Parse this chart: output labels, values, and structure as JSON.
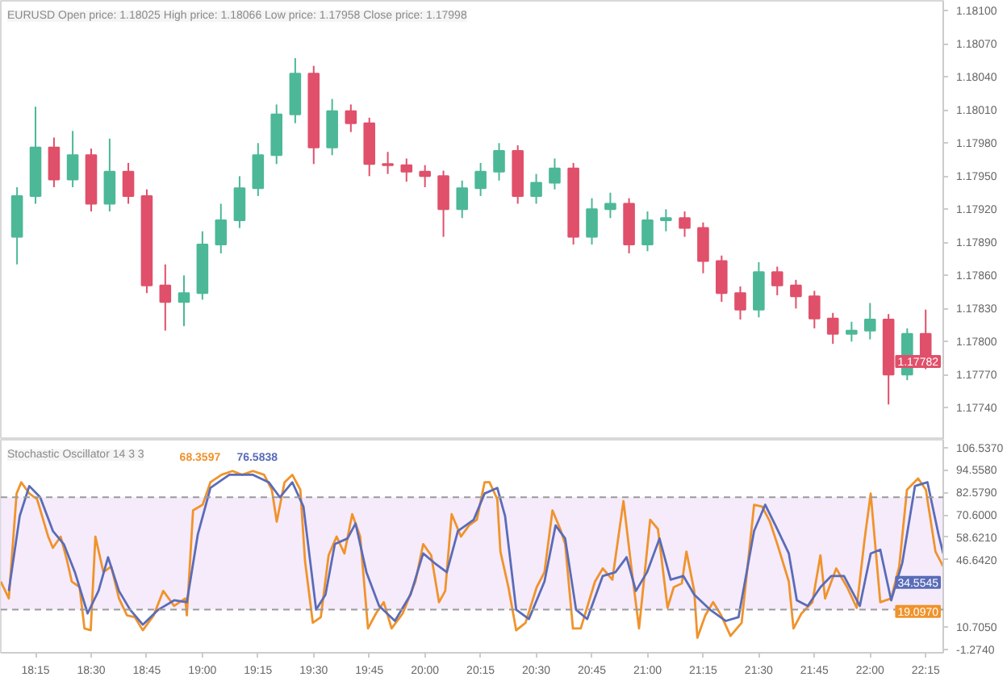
{
  "chart_data": [
    {
      "type": "candlestick",
      "title": "EURUSD Open price: 1.18025 High price: 1.18066 Low price: 1.17958 Close price: 1.17998",
      "x": [
        18.167,
        18.25,
        18.333,
        18.417,
        18.5,
        18.583,
        18.667,
        18.75,
        18.833,
        18.917,
        19,
        19.083,
        19.167,
        19.25,
        19.333,
        19.417,
        19.5,
        19.583,
        19.667,
        19.75,
        19.833,
        19.917,
        20,
        20.083,
        20.167,
        20.25,
        20.333,
        20.417,
        20.5,
        20.583,
        20.667,
        20.75,
        20.833,
        20.917,
        21,
        21.083,
        21.167,
        21.25,
        21.333,
        21.417,
        21.5,
        21.583,
        21.667,
        21.75,
        21.833,
        21.917,
        22,
        22.083,
        22.167,
        22.25
      ],
      "ohlc": [
        [
          1.17895,
          1.1794,
          1.1787,
          1.17932
        ],
        [
          1.17932,
          1.18013,
          1.17925,
          1.17976
        ],
        [
          1.17976,
          1.17985,
          1.1794,
          1.17947
        ],
        [
          1.17947,
          1.17991,
          1.1794,
          1.17969
        ],
        [
          1.17969,
          1.17975,
          1.17918,
          1.17925
        ],
        [
          1.17925,
          1.17984,
          1.17918,
          1.17954
        ],
        [
          1.17954,
          1.17962,
          1.17925,
          1.17932
        ],
        [
          1.17932,
          1.17938,
          1.17844,
          1.17851
        ],
        [
          1.17851,
          1.1787,
          1.1781,
          1.17836
        ],
        [
          1.17836,
          1.1786,
          1.17814,
          1.17844
        ],
        [
          1.17844,
          1.179,
          1.17838,
          1.17888
        ],
        [
          1.17888,
          1.17925,
          1.1788,
          1.1791
        ],
        [
          1.1791,
          1.1795,
          1.17903,
          1.17939
        ],
        [
          1.17939,
          1.1798,
          1.17932,
          1.17969
        ],
        [
          1.17969,
          1.18015,
          1.17961,
          1.18006
        ],
        [
          1.18006,
          1.18057,
          1.17998,
          1.18043
        ],
        [
          1.18043,
          1.1805,
          1.17961,
          1.17976
        ],
        [
          1.17976,
          1.1802,
          1.17969,
          1.18009
        ],
        [
          1.18009,
          1.18015,
          1.1799,
          1.17998
        ],
        [
          1.17998,
          1.18003,
          1.1795,
          1.17961
        ],
        [
          1.17961,
          1.17972,
          1.17952,
          1.1796
        ],
        [
          1.1796,
          1.17966,
          1.17945,
          1.17954
        ],
        [
          1.17954,
          1.1796,
          1.1794,
          1.1795
        ],
        [
          1.1795,
          1.17955,
          1.17895,
          1.1792
        ],
        [
          1.1792,
          1.17946,
          1.17912,
          1.17939
        ],
        [
          1.17939,
          1.17962,
          1.17932,
          1.17954
        ],
        [
          1.17954,
          1.1798,
          1.17946,
          1.17973
        ],
        [
          1.17973,
          1.17978,
          1.17925,
          1.17932
        ],
        [
          1.17932,
          1.17952,
          1.17925,
          1.17944
        ],
        [
          1.17944,
          1.17966,
          1.17938,
          1.17957
        ],
        [
          1.17957,
          1.17962,
          1.17888,
          1.17895
        ],
        [
          1.17895,
          1.1793,
          1.17888,
          1.1792
        ],
        [
          1.1792,
          1.17935,
          1.17912,
          1.17925
        ],
        [
          1.17925,
          1.1793,
          1.1788,
          1.17888
        ],
        [
          1.17888,
          1.17918,
          1.17882,
          1.1791
        ],
        [
          1.1791,
          1.1792,
          1.179,
          1.17912
        ],
        [
          1.17912,
          1.17918,
          1.17895,
          1.17903
        ],
        [
          1.17903,
          1.17908,
          1.17862,
          1.17873
        ],
        [
          1.17873,
          1.17878,
          1.17836,
          1.17844
        ],
        [
          1.17844,
          1.1785,
          1.1782,
          1.17829
        ],
        [
          1.17829,
          1.17872,
          1.17822,
          1.17863
        ],
        [
          1.17863,
          1.17868,
          1.17842,
          1.17851
        ],
        [
          1.17851,
          1.17856,
          1.1783,
          1.17841
        ],
        [
          1.17841,
          1.17846,
          1.17812,
          1.17821
        ],
        [
          1.17821,
          1.17826,
          1.17798,
          1.17807
        ],
        [
          1.17807,
          1.17818,
          1.178,
          1.1781
        ],
        [
          1.1781,
          1.17835,
          1.17802,
          1.1782
        ],
        [
          1.1782,
          1.17825,
          1.17743,
          1.1777
        ],
        [
          1.1777,
          1.17812,
          1.17765,
          1.17807
        ],
        [
          1.17807,
          1.17829,
          1.17775,
          1.17782
        ]
      ],
      "colors": [
        "#4cb897",
        "#4cb897",
        "#e0506a",
        "#4cb897",
        "#e0506a",
        "#4cb897",
        "#e0506a",
        "#e0506a",
        "#e0506a",
        "#4cb897",
        "#4cb897",
        "#4cb897",
        "#4cb897",
        "#4cb897",
        "#4cb897",
        "#4cb897",
        "#e0506a",
        "#4cb897",
        "#e0506a",
        "#e0506a",
        "#e0506a",
        "#e0506a",
        "#e0506a",
        "#e0506a",
        "#4cb897",
        "#4cb897",
        "#4cb897",
        "#e0506a",
        "#4cb897",
        "#4cb897",
        "#e0506a",
        "#4cb897",
        "#4cb897",
        "#e0506a",
        "#4cb897",
        "#4cb897",
        "#e0506a",
        "#e0506a",
        "#e0506a",
        "#e0506a",
        "#4cb897",
        "#e0506a",
        "#e0506a",
        "#e0506a",
        "#e0506a",
        "#4cb897",
        "#4cb897",
        "#e0506a",
        "#4cb897",
        "#e0506a"
      ],
      "xlim": [
        18.094,
        22.329
      ],
      "ylim": [
        1.17711,
        1.18109
      ],
      "yticks": [
        {
          "value": 1.181,
          "label": "1.18100"
        },
        {
          "value": 1.1807,
          "label": "1.18070"
        },
        {
          "value": 1.1804,
          "label": "1.18040"
        },
        {
          "value": 1.1801,
          "label": "1.18010"
        },
        {
          "value": 1.1798,
          "label": "1.17980"
        },
        {
          "value": 1.1795,
          "label": "1.17950"
        },
        {
          "value": 1.1792,
          "label": "1.17920"
        },
        {
          "value": 1.1789,
          "label": "1.17890"
        },
        {
          "value": 1.1786,
          "label": "1.17860"
        },
        {
          "value": 1.1783,
          "label": "1.17830"
        },
        {
          "value": 1.178,
          "label": "1.17800"
        },
        {
          "value": 1.1777,
          "label": "1.17770"
        },
        {
          "value": 1.1774,
          "label": "1.17740"
        }
      ],
      "annotations": [
        "1.17782"
      ],
      "tick_labels": "y",
      "grid": false
    },
    {
      "type": "line",
      "title": "Stochastic Oscillator 14 3 3",
      "series": [
        {
          "color": "#f0932b",
          "x": [
            18.094,
            18.13,
            18.165,
            18.186,
            18.222,
            18.257,
            18.307,
            18.328,
            18.363,
            18.392,
            18.413,
            18.448,
            18.47,
            18.498,
            18.519,
            18.555,
            18.59,
            18.625,
            18.661,
            18.696,
            18.732,
            18.781,
            18.824,
            18.873,
            18.923,
            18.93,
            18.958,
            19.001,
            19.036,
            19.086,
            19.135,
            19.178,
            19.227,
            19.277,
            19.312,
            19.334,
            19.369,
            19.404,
            19.44,
            19.461,
            19.496,
            19.532,
            19.567,
            19.603,
            19.638,
            19.673,
            19.709,
            19.744,
            19.78,
            19.815,
            19.85,
            19.9,
            19.957,
            19.992,
            20.028,
            20.063,
            20.091,
            20.12,
            20.162,
            20.198,
            20.233,
            20.268,
            20.29,
            20.325,
            20.339,
            20.375,
            20.41,
            20.452,
            20.502,
            20.537,
            20.573,
            20.608,
            20.63,
            20.665,
            20.7,
            20.764,
            20.799,
            20.842,
            20.892,
            20.927,
            20.962,
            21.012,
            21.047,
            21.09,
            21.118,
            21.154,
            21.175,
            21.21,
            21.224,
            21.26,
            21.295,
            21.331,
            21.373,
            21.423,
            21.479,
            21.515,
            21.55,
            21.586,
            21.635,
            21.656,
            21.692,
            21.741,
            21.777,
            21.798,
            21.848,
            21.897,
            21.94,
            21.975,
            22.003,
            22.046,
            22.095,
            22.131,
            22.166,
            22.216,
            22.251,
            22.294,
            22.329
          ],
          "values": [
            35,
            26,
            82,
            88,
            82,
            79,
            59,
            53,
            59,
            46,
            35,
            32,
            10,
            9,
            59,
            40,
            43,
            26,
            17,
            16,
            9,
            17,
            30,
            22,
            26,
            17,
            73,
            76,
            88,
            92,
            94,
            92,
            94,
            92,
            84,
            67,
            88,
            92,
            84,
            46,
            13,
            16,
            49,
            59,
            50,
            71,
            59,
            10,
            18,
            24,
            10,
            18,
            35,
            55,
            49,
            24,
            30,
            71,
            59,
            65,
            68,
            88,
            88,
            79,
            51,
            32,
            9,
            13,
            32,
            40,
            73,
            63,
            55,
            10,
            10,
            35,
            42,
            36,
            78,
            43,
            10,
            68,
            63,
            21,
            32,
            34,
            51,
            30,
            5,
            17,
            24,
            17,
            6,
            13,
            76,
            75,
            67,
            54,
            35,
            10,
            18,
            24,
            49,
            26,
            42,
            32,
            21,
            57,
            82,
            24,
            26,
            43,
            84,
            90,
            84,
            51,
            43
          ]
        },
        {
          "color": "#5a6cb8",
          "x": [
            18.13,
            18.179,
            18.222,
            18.271,
            18.328,
            18.377,
            18.427,
            18.484,
            18.533,
            18.576,
            18.625,
            18.675,
            18.732,
            18.802,
            18.873,
            18.93,
            18.979,
            19.036,
            19.121,
            19.227,
            19.298,
            19.348,
            19.404,
            19.454,
            19.511,
            19.553,
            19.595,
            19.652,
            19.688,
            19.737,
            19.794,
            19.865,
            19.935,
            19.992,
            20.042,
            20.098,
            20.148,
            20.219,
            20.268,
            20.325,
            20.36,
            20.41,
            20.467,
            20.537,
            20.587,
            20.63,
            20.679,
            20.729,
            20.799,
            20.856,
            20.906,
            20.948,
            20.998,
            21.054,
            21.104,
            21.161,
            21.21,
            21.281,
            21.352,
            21.409,
            21.479,
            21.529,
            21.579,
            21.635,
            21.671,
            21.72,
            21.777,
            21.826,
            21.883,
            21.954,
            22.003,
            22.046,
            22.095,
            22.145,
            22.202,
            22.258,
            22.308,
            22.329
          ],
          "values": [
            30,
            70,
            86,
            80,
            62,
            55,
            40,
            18,
            30,
            48,
            30,
            20,
            12,
            20,
            25,
            24,
            60,
            85,
            92,
            92,
            88,
            80,
            88,
            75,
            20,
            28,
            55,
            58,
            66,
            40,
            22,
            14,
            28,
            50,
            45,
            40,
            62,
            68,
            82,
            85,
            70,
            20,
            15,
            35,
            65,
            58,
            20,
            15,
            38,
            40,
            48,
            30,
            40,
            58,
            36,
            38,
            28,
            20,
            14,
            16,
            62,
            76,
            64,
            50,
            25,
            22,
            32,
            38,
            38,
            22,
            50,
            52,
            25,
            45,
            86,
            88,
            60,
            50
          ]
        }
      ],
      "xlim": [
        18.094,
        22.329
      ],
      "ylim": [
        -3,
        110.7
      ],
      "xticks": [
        {
          "value": 18.25,
          "label": "18:15"
        },
        {
          "value": 18.5,
          "label": "18:30"
        },
        {
          "value": 18.75,
          "label": "18:45"
        },
        {
          "value": 19,
          "label": "19:00"
        },
        {
          "value": 19.25,
          "label": "19:15"
        },
        {
          "value": 19.5,
          "label": "19:30"
        },
        {
          "value": 19.75,
          "label": "19:45"
        },
        {
          "value": 20,
          "label": "20:00"
        },
        {
          "value": 20.25,
          "label": "20:15"
        },
        {
          "value": 20.5,
          "label": "20:30"
        },
        {
          "value": 20.75,
          "label": "20:45"
        },
        {
          "value": 21,
          "label": "21:00"
        },
        {
          "value": 21.25,
          "label": "21:15"
        },
        {
          "value": 21.5,
          "label": "21:30"
        },
        {
          "value": 21.75,
          "label": "21:45"
        },
        {
          "value": 22,
          "label": "22:00"
        },
        {
          "value": 22.25,
          "label": "22:15"
        }
      ],
      "yticks": [
        {
          "value": 106.537,
          "label": "106.5370"
        },
        {
          "value": 94.558,
          "label": "94.5580"
        },
        {
          "value": 82.579,
          "label": "82.5790"
        },
        {
          "value": 70.6,
          "label": "70.6000"
        },
        {
          "value": 58.621,
          "label": "58.6210"
        },
        {
          "value": 46.642,
          "label": "46.6420"
        },
        {
          "value": 10.705,
          "label": "10.7050"
        },
        {
          "value": -1.274,
          "label": "-1.2740"
        }
      ],
      "ref_lines": [
        {
          "axis": "y",
          "value": 80,
          "color": "#9a9a9a",
          "line_style": "dashed"
        },
        {
          "axis": "y",
          "value": 20,
          "color": "#9a9a9a",
          "line_style": "dashed"
        }
      ],
      "bands": [
        {
          "axis": "y",
          "from": 20,
          "to": 80,
          "color": "#f2e6fa"
        }
      ],
      "annotations": [
        "68.3597",
        "76.5838",
        {
          "text": "34.5545",
          "x": 22.329,
          "y": 34.5545
        },
        {
          "text": "19.0970",
          "x": 22.329,
          "y": 19.097
        }
      ],
      "grid": false,
      "line_style": "solid",
      "marker": "none"
    }
  ]
}
